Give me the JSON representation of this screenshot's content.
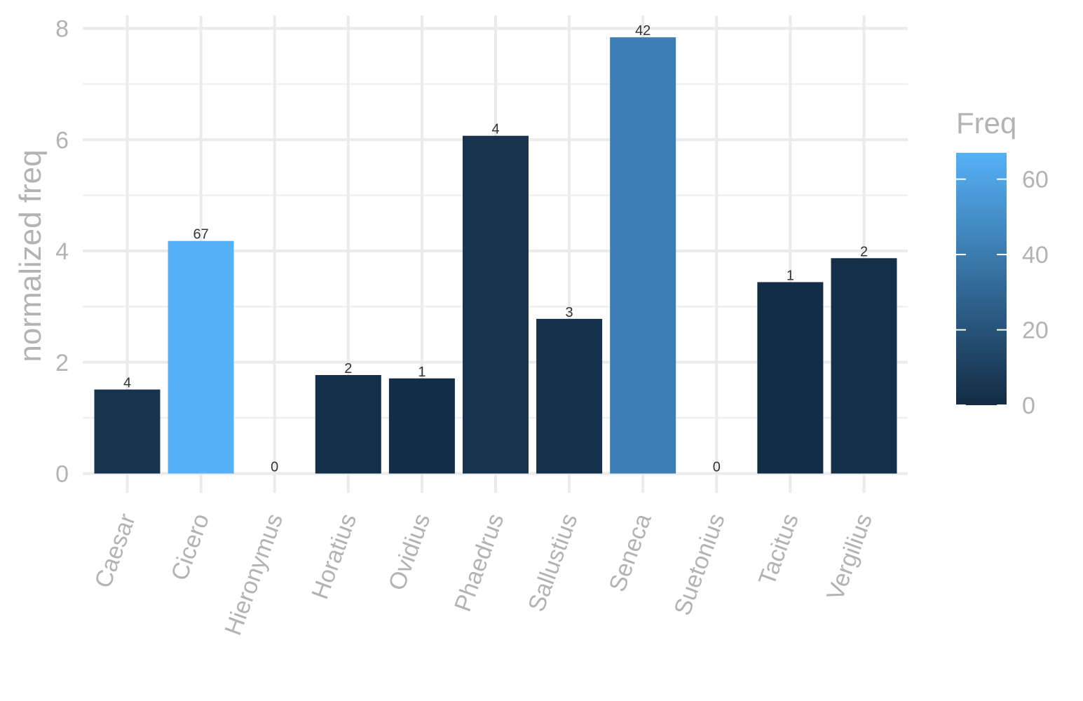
{
  "chart_data": {
    "type": "bar",
    "title": "",
    "xlabel": "",
    "ylabel": "normalized freq",
    "categories": [
      "Caesar",
      "Cicero",
      "Hieronymus",
      "Horatius",
      "Ovidius",
      "Phaedrus",
      "Sallustius",
      "Seneca",
      "Suetonius",
      "Tacitus",
      "Vergilius"
    ],
    "values": [
      1.51,
      4.18,
      0,
      1.77,
      1.71,
      6.07,
      2.78,
      7.84,
      0,
      3.44,
      3.87
    ],
    "fill_values": [
      4,
      67,
      0,
      2,
      1,
      4,
      3,
      42,
      0,
      1,
      2
    ],
    "bar_labels": [
      "4",
      "67",
      "0",
      "2",
      "1",
      "4",
      "3",
      "42",
      "0",
      "1",
      "2"
    ],
    "ylim": [
      0,
      8
    ],
    "y_ticks": [
      0,
      2,
      4,
      6,
      8
    ],
    "grid": true,
    "x_tick_rotation_deg": 70,
    "legend": {
      "title": "Freq",
      "type": "colorbar",
      "position": "right",
      "range": [
        0,
        67
      ],
      "ticks": [
        0,
        20,
        40,
        60
      ],
      "low_color": "#132b43",
      "high_color": "#56b1f7"
    }
  }
}
